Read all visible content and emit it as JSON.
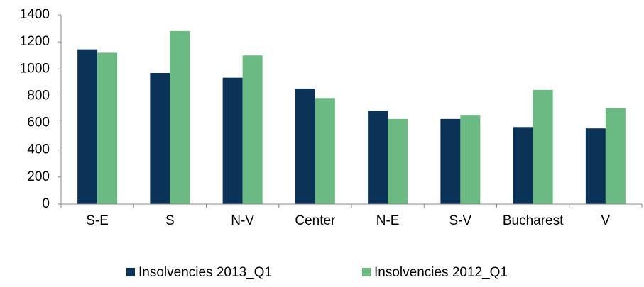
{
  "chart_data": {
    "type": "bar",
    "categories": [
      "S-E",
      "S",
      "N-V",
      "Center",
      "N-E",
      "S-V",
      "Bucharest",
      "V"
    ],
    "series": [
      {
        "name": "Insolvencies 2013_Q1",
        "color": "#0b3358",
        "values": [
          1145,
          970,
          935,
          855,
          690,
          630,
          570,
          560
        ]
      },
      {
        "name": "Insolvencies 2012_Q1",
        "color": "#6cba83",
        "values": [
          1120,
          1280,
          1100,
          785,
          630,
          660,
          845,
          710
        ]
      }
    ],
    "ylim": [
      0,
      1400
    ],
    "yticks": [
      0,
      200,
      400,
      600,
      800,
      1000,
      1200,
      1400
    ],
    "grid": false,
    "legend": "bottom"
  }
}
